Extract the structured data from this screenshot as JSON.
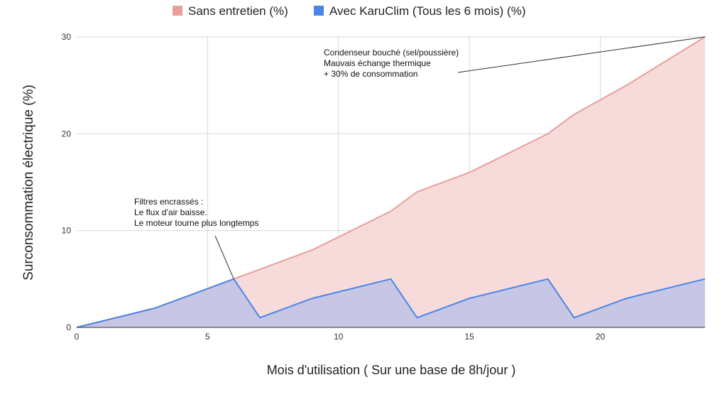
{
  "chart_data": {
    "type": "area",
    "title": "",
    "xlabel": "Mois d'utilisation ( Sur une base de 8h/jour )",
    "ylabel": "Surconsommation électrique (%)",
    "xlim": [
      0,
      24
    ],
    "ylim": [
      0,
      30
    ],
    "x_ticks": [
      0,
      5,
      10,
      15,
      20
    ],
    "y_ticks": [
      0,
      10,
      20,
      30
    ],
    "grid": true,
    "legend_position": "top",
    "series": [
      {
        "name": "Sans entretien (%)",
        "color": "#e8a09c",
        "fill": "#f6d9d8",
        "x": [
          0,
          3,
          6,
          9,
          12,
          13,
          15,
          18,
          19,
          21,
          24
        ],
        "values": [
          0,
          2,
          5,
          8,
          12,
          14,
          16,
          20,
          22,
          25,
          30
        ]
      },
      {
        "name": "Avec KaruClim (Tous les 6 mois) (%)",
        "color": "#4a86e8",
        "fill": "#c2c3e4",
        "x": [
          0,
          3,
          6,
          7,
          9,
          12,
          13,
          15,
          18,
          19,
          21,
          24
        ],
        "values": [
          0,
          2,
          5,
          1,
          3,
          5,
          1,
          3,
          5,
          1,
          3,
          5
        ]
      }
    ],
    "annotations": [
      {
        "lines": [
          "Condenseur bouché (sel/poussière)",
          "Mauvais échange thermique",
          "+     30% de consommation"
        ],
        "point": [
          24,
          30
        ]
      },
      {
        "lines": [
          "Filtres encrassés :",
          "Le flux d’air baisse.",
          "Le moteur tourne plus longtemps"
        ],
        "point": [
          6,
          5
        ]
      }
    ]
  }
}
